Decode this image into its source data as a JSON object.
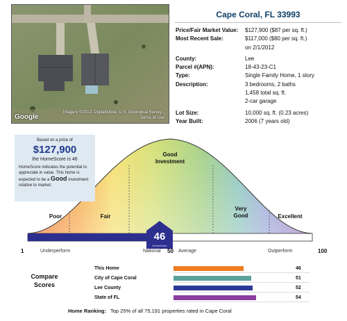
{
  "map": {
    "provider": "Google",
    "credit": "Imagery ©2013, DigitalGlobe, U.S. Geological Survey - Terms of Use"
  },
  "property": {
    "title": "Cape Coral, FL  33993",
    "details": [
      {
        "label": "Price/Fair Market Value:",
        "value": "$127,900 ($87 per sq. ft.)"
      },
      {
        "label": "Most Recent Sale:",
        "value": "$117,000 ($80 per sq. ft.)"
      },
      {
        "label": "",
        "value": "on 2/1/2012"
      },
      {
        "label": "County:",
        "value": "Lee",
        "gap": true
      },
      {
        "label": "Parcel #(APN):",
        "value": "18-43-23-C1"
      },
      {
        "label": "Type:",
        "value": "Single Family Home, 1 story"
      },
      {
        "label": "Description:",
        "value": "3 bedrooms, 2 baths"
      },
      {
        "label": "",
        "value": "1,458 total sq. ft."
      },
      {
        "label": "",
        "value": "2-car garage"
      },
      {
        "label": "Lot Size:",
        "value": "10,000 sq. ft. (0.23 acres)",
        "gap": true
      },
      {
        "label": "Year Built:",
        "value": "2006 (7 years old)"
      }
    ]
  },
  "homescore": {
    "based_on": "Based on a price of",
    "price": "$127,900",
    "score_text": "the HomeScore is 46",
    "desc_pre": "HomeScore indicates the potential to appreciate in value. This home is expected to be a",
    "desc_word": "Good",
    "desc_post": "investment relative to market.",
    "score": 46,
    "badge_label": "HomeScore",
    "segments": {
      "poor": "Poor",
      "fair": "Fair",
      "good_1": "Good",
      "good_2": "Investment",
      "very_1": "Very",
      "very_2": "Good",
      "excellent": "Excellent"
    },
    "scale": {
      "min": "1",
      "max": "100",
      "mid": "50",
      "underperform": "Underperform",
      "national": "National",
      "average": "Average",
      "outperform": "Outperform"
    }
  },
  "compare": {
    "heading_1": "Compare",
    "heading_2": "Scores",
    "rows": [
      {
        "label": "This Home",
        "score": "46",
        "value": 46,
        "color": "#ef7d22"
      },
      {
        "label": "City of Cape Coral",
        "score": "51",
        "value": 51,
        "color": "#5aa19a"
      },
      {
        "label": "Lee County",
        "score": "52",
        "value": 52,
        "color": "#2b3a95"
      },
      {
        "label": "State of FL",
        "score": "54",
        "value": 54,
        "color": "#8a3fa0"
      }
    ]
  },
  "ranking": {
    "label": "Home Ranking:",
    "text": "Top 25% of all 75,191 properties rated in Cape Coral"
  }
}
